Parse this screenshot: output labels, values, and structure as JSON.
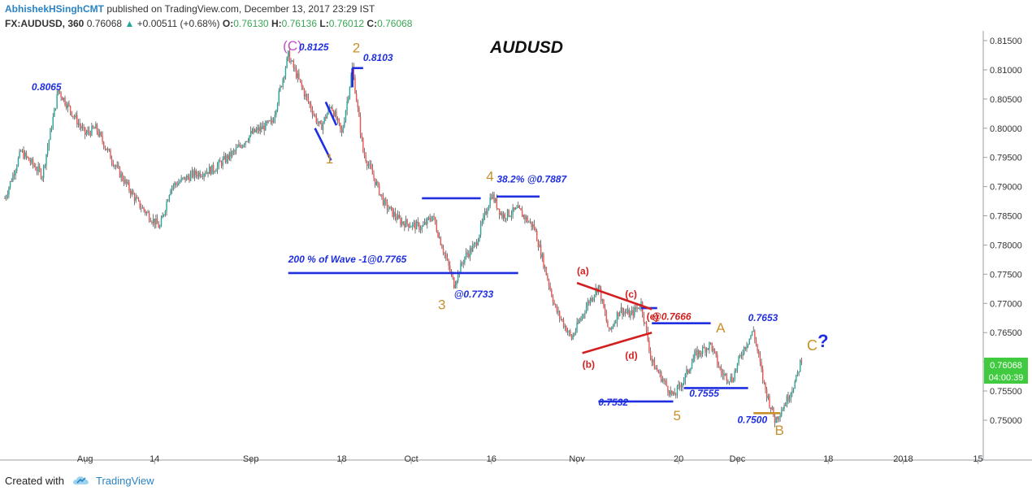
{
  "header": {
    "author": "AbhishekHSinghCMT",
    "published": "published on TradingView.com, December 13, 2017 23:29 IST",
    "symbol": "FX:AUDUSD, 360",
    "last": "0.76068",
    "change": "+0.00511 (+0.68%)",
    "open_label": "O:",
    "open": "0.76130",
    "high_label": "H:",
    "high": "0.76136",
    "low_label": "L:",
    "low": "0.76012",
    "close_label": "C:",
    "close": "0.76068"
  },
  "footer": {
    "created_with": "Created with",
    "brand": "TradingView"
  },
  "colors": {
    "up": "#26a69a",
    "down": "#ef5350",
    "blue": "#1f2fe0",
    "orange": "#c8902c",
    "magenta": "#c04fc0",
    "red": "#d21f1f",
    "price_tag": "#3fca3f"
  },
  "chart_data": {
    "type": "candlestick",
    "title": "AUDUSD",
    "ylim": [
      0.7465,
      0.8165
    ],
    "y_ticks": [
      "0.81500",
      "0.81000",
      "0.80500",
      "0.80000",
      "0.79500",
      "0.79000",
      "0.78500",
      "0.78000",
      "0.77500",
      "0.77000",
      "0.76500",
      "0.76000",
      "0.75500",
      "0.75000"
    ],
    "x_ticks": [
      "Aug",
      "14",
      "Sep",
      "18",
      "Oct",
      "16",
      "Nov",
      "20",
      "Dec",
      "18",
      "2018",
      "15"
    ],
    "current_price": "0.76068",
    "countdown": "04:00:39",
    "waypoints": [
      [
        "2017-07-17",
        0.788
      ],
      [
        "2017-07-20",
        0.796
      ],
      [
        "2017-07-24",
        0.792
      ],
      [
        "2017-07-27",
        0.8065
      ],
      [
        "2017-08-01",
        0.799
      ],
      [
        "2017-08-03",
        0.8
      ],
      [
        "2017-08-07",
        0.793
      ],
      [
        "2017-08-11",
        0.787
      ],
      [
        "2017-08-15",
        0.783
      ],
      [
        "2017-08-17",
        0.79
      ],
      [
        "2017-08-21",
        0.792
      ],
      [
        "2017-08-25",
        0.793
      ],
      [
        "2017-08-29",
        0.796
      ],
      [
        "2017-09-01",
        0.799
      ],
      [
        "2017-09-05",
        0.801
      ],
      [
        "2017-09-08",
        0.8125
      ],
      [
        "2017-09-11",
        0.806
      ],
      [
        "2017-09-14",
        0.8
      ],
      [
        "2017-09-16",
        0.804
      ],
      [
        "2017-09-18",
        0.799
      ],
      [
        "2017-09-20",
        0.8103
      ],
      [
        "2017-09-22",
        0.796
      ],
      [
        "2017-09-26",
        0.787
      ],
      [
        "2017-09-29",
        0.784
      ],
      [
        "2017-10-03",
        0.783
      ],
      [
        "2017-10-05",
        0.785
      ],
      [
        "2017-10-09",
        0.7733
      ],
      [
        "2017-10-11",
        0.778
      ],
      [
        "2017-10-13",
        0.78
      ],
      [
        "2017-10-16",
        0.7887
      ],
      [
        "2017-10-18",
        0.785
      ],
      [
        "2017-10-21",
        0.786
      ],
      [
        "2017-10-24",
        0.783
      ],
      [
        "2017-10-26",
        0.776
      ],
      [
        "2017-10-28",
        0.769
      ],
      [
        "2017-10-31",
        0.764
      ],
      [
        "2017-11-03",
        0.77
      ],
      [
        "2017-11-05",
        0.773
      ],
      [
        "2017-11-07",
        0.765
      ],
      [
        "2017-11-09",
        0.769
      ],
      [
        "2017-11-11",
        0.768
      ],
      [
        "2017-11-13",
        0.77
      ],
      [
        "2017-11-15",
        0.76
      ],
      [
        "2017-11-17",
        0.757
      ],
      [
        "2017-11-19",
        0.754
      ],
      [
        "2017-11-21",
        0.757
      ],
      [
        "2017-11-23",
        0.761
      ],
      [
        "2017-11-26",
        0.763
      ],
      [
        "2017-11-28",
        0.758
      ],
      [
        "2017-11-30",
        0.757
      ],
      [
        "2017-12-02",
        0.762
      ],
      [
        "2017-12-04",
        0.7653
      ],
      [
        "2017-12-06",
        0.756
      ],
      [
        "2017-12-08",
        0.75
      ],
      [
        "2017-12-10",
        0.753
      ],
      [
        "2017-12-12",
        0.757
      ],
      [
        "2017-12-13",
        0.7607
      ]
    ],
    "annotations": [
      {
        "text": "(C)",
        "date": "2017-09-07",
        "price": 0.8133,
        "color": "magenta",
        "size": 17
      },
      {
        "text": "0.8125",
        "date": "2017-09-10",
        "price": 0.8133,
        "color": "blue",
        "italic": true
      },
      {
        "text": "2",
        "date": "2017-09-20",
        "price": 0.813,
        "color": "orange",
        "size": 17
      },
      {
        "text": "0.8103",
        "date": "2017-09-22",
        "price": 0.8115,
        "color": "blue",
        "italic": true
      },
      {
        "text": "0.8065",
        "date": "2017-07-22",
        "price": 0.8065,
        "color": "blue",
        "italic": true
      },
      {
        "text": "1",
        "date": "2017-09-15",
        "price": 0.794,
        "color": "orange",
        "size": 17
      },
      {
        "text": "4",
        "date": "2017-10-15",
        "price": 0.791,
        "color": "orange",
        "size": 17
      },
      {
        "text": "38.2% @0.7887",
        "date": "2017-10-17",
        "price": 0.7907,
        "color": "blue",
        "italic": true
      },
      {
        "text": "200 % of Wave -1@0.7765",
        "date": "2017-09-08",
        "price": 0.777,
        "color": "blue",
        "italic": true
      },
      {
        "text": "@0.7733",
        "date": "2017-10-09",
        "price": 0.771,
        "color": "blue",
        "italic": true
      },
      {
        "text": "3",
        "date": "2017-10-06",
        "price": 0.769,
        "color": "orange",
        "size": 17
      },
      {
        "text": "(a)",
        "date": "2017-11-01",
        "price": 0.775,
        "color": "red"
      },
      {
        "text": "(c)",
        "date": "2017-11-10",
        "price": 0.771,
        "color": "red"
      },
      {
        "text": "(e)",
        "date": "2017-11-14",
        "price": 0.7672,
        "color": "red"
      },
      {
        "text": "@0.7666",
        "date": "2017-11-15",
        "price": 0.7672,
        "color": "red",
        "italic": true
      },
      {
        "text": "(d)",
        "date": "2017-11-10",
        "price": 0.7605,
        "color": "red"
      },
      {
        "text": "(b)",
        "date": "2017-11-02",
        "price": 0.759,
        "color": "red"
      },
      {
        "text": "A",
        "date": "2017-11-27",
        "price": 0.765,
        "color": "orange",
        "size": 17
      },
      {
        "text": "0.7653",
        "date": "2017-12-03",
        "price": 0.767,
        "color": "blue",
        "italic": true
      },
      {
        "text": "C",
        "date": "2017-12-14",
        "price": 0.762,
        "color": "orange",
        "size": 18
      },
      {
        "text": "?",
        "date": "2017-12-16",
        "price": 0.7625,
        "color": "blue",
        "size": 22,
        "bold": true
      },
      {
        "text": "0.7555",
        "date": "2017-11-22",
        "price": 0.754,
        "color": "blue",
        "italic": true
      },
      {
        "text": "0.7532",
        "date": "2017-11-05",
        "price": 0.7525,
        "color": "blue",
        "italic": true
      },
      {
        "text": "5",
        "date": "2017-11-19",
        "price": 0.75,
        "color": "orange",
        "size": 17
      },
      {
        "text": "0.7500",
        "date": "2017-12-01",
        "price": 0.7495,
        "color": "blue",
        "italic": true
      },
      {
        "text": "B",
        "date": "2017-12-08",
        "price": 0.7475,
        "color": "orange",
        "size": 17
      }
    ],
    "lines": [
      {
        "from": [
          "2017-09-20",
          0.8103
        ],
        "to": [
          "2017-09-22",
          0.8103
        ],
        "color": "blue"
      },
      {
        "from": [
          "2017-09-20",
          0.8103
        ],
        "to": [
          "2017-09-20",
          0.807
        ],
        "color": "blue"
      },
      {
        "from": [
          "2017-09-13",
          0.8
        ],
        "to": [
          "2017-09-16",
          0.7945
        ],
        "color": "blue"
      },
      {
        "from": [
          "2017-09-15",
          0.8045
        ],
        "to": [
          "2017-09-17",
          0.8005
        ],
        "color": "blue"
      },
      {
        "from": [
          "2017-10-03",
          0.788
        ],
        "to": [
          "2017-10-14",
          0.788
        ],
        "color": "blue"
      },
      {
        "from": [
          "2017-10-17",
          0.7883
        ],
        "to": [
          "2017-10-25",
          0.7883
        ],
        "color": "blue"
      },
      {
        "from": [
          "2017-09-08",
          0.7752
        ],
        "to": [
          "2017-10-21",
          0.7752
        ],
        "color": "blue"
      },
      {
        "from": [
          "2017-11-13",
          0.7692
        ],
        "to": [
          "2017-11-16",
          0.7692
        ],
        "color": "blue"
      },
      {
        "from": [
          "2017-11-15",
          0.7666
        ],
        "to": [
          "2017-11-26",
          0.7666
        ],
        "color": "blue"
      },
      {
        "from": [
          "2017-11-21",
          0.7555
        ],
        "to": [
          "2017-12-03",
          0.7555
        ],
        "color": "blue"
      },
      {
        "from": [
          "2017-11-05",
          0.7532
        ],
        "to": [
          "2017-11-19",
          0.7532
        ],
        "color": "blue"
      },
      {
        "from": [
          "2017-11-01",
          0.7735
        ],
        "to": [
          "2017-11-15",
          0.769
        ],
        "color": "red"
      },
      {
        "from": [
          "2017-11-02",
          0.7615
        ],
        "to": [
          "2017-11-15",
          0.765
        ],
        "color": "red"
      },
      {
        "from": [
          "2017-12-04",
          0.7512
        ],
        "to": [
          "2017-12-09",
          0.7512
        ],
        "color": "orange"
      }
    ],
    "grid": false
  }
}
